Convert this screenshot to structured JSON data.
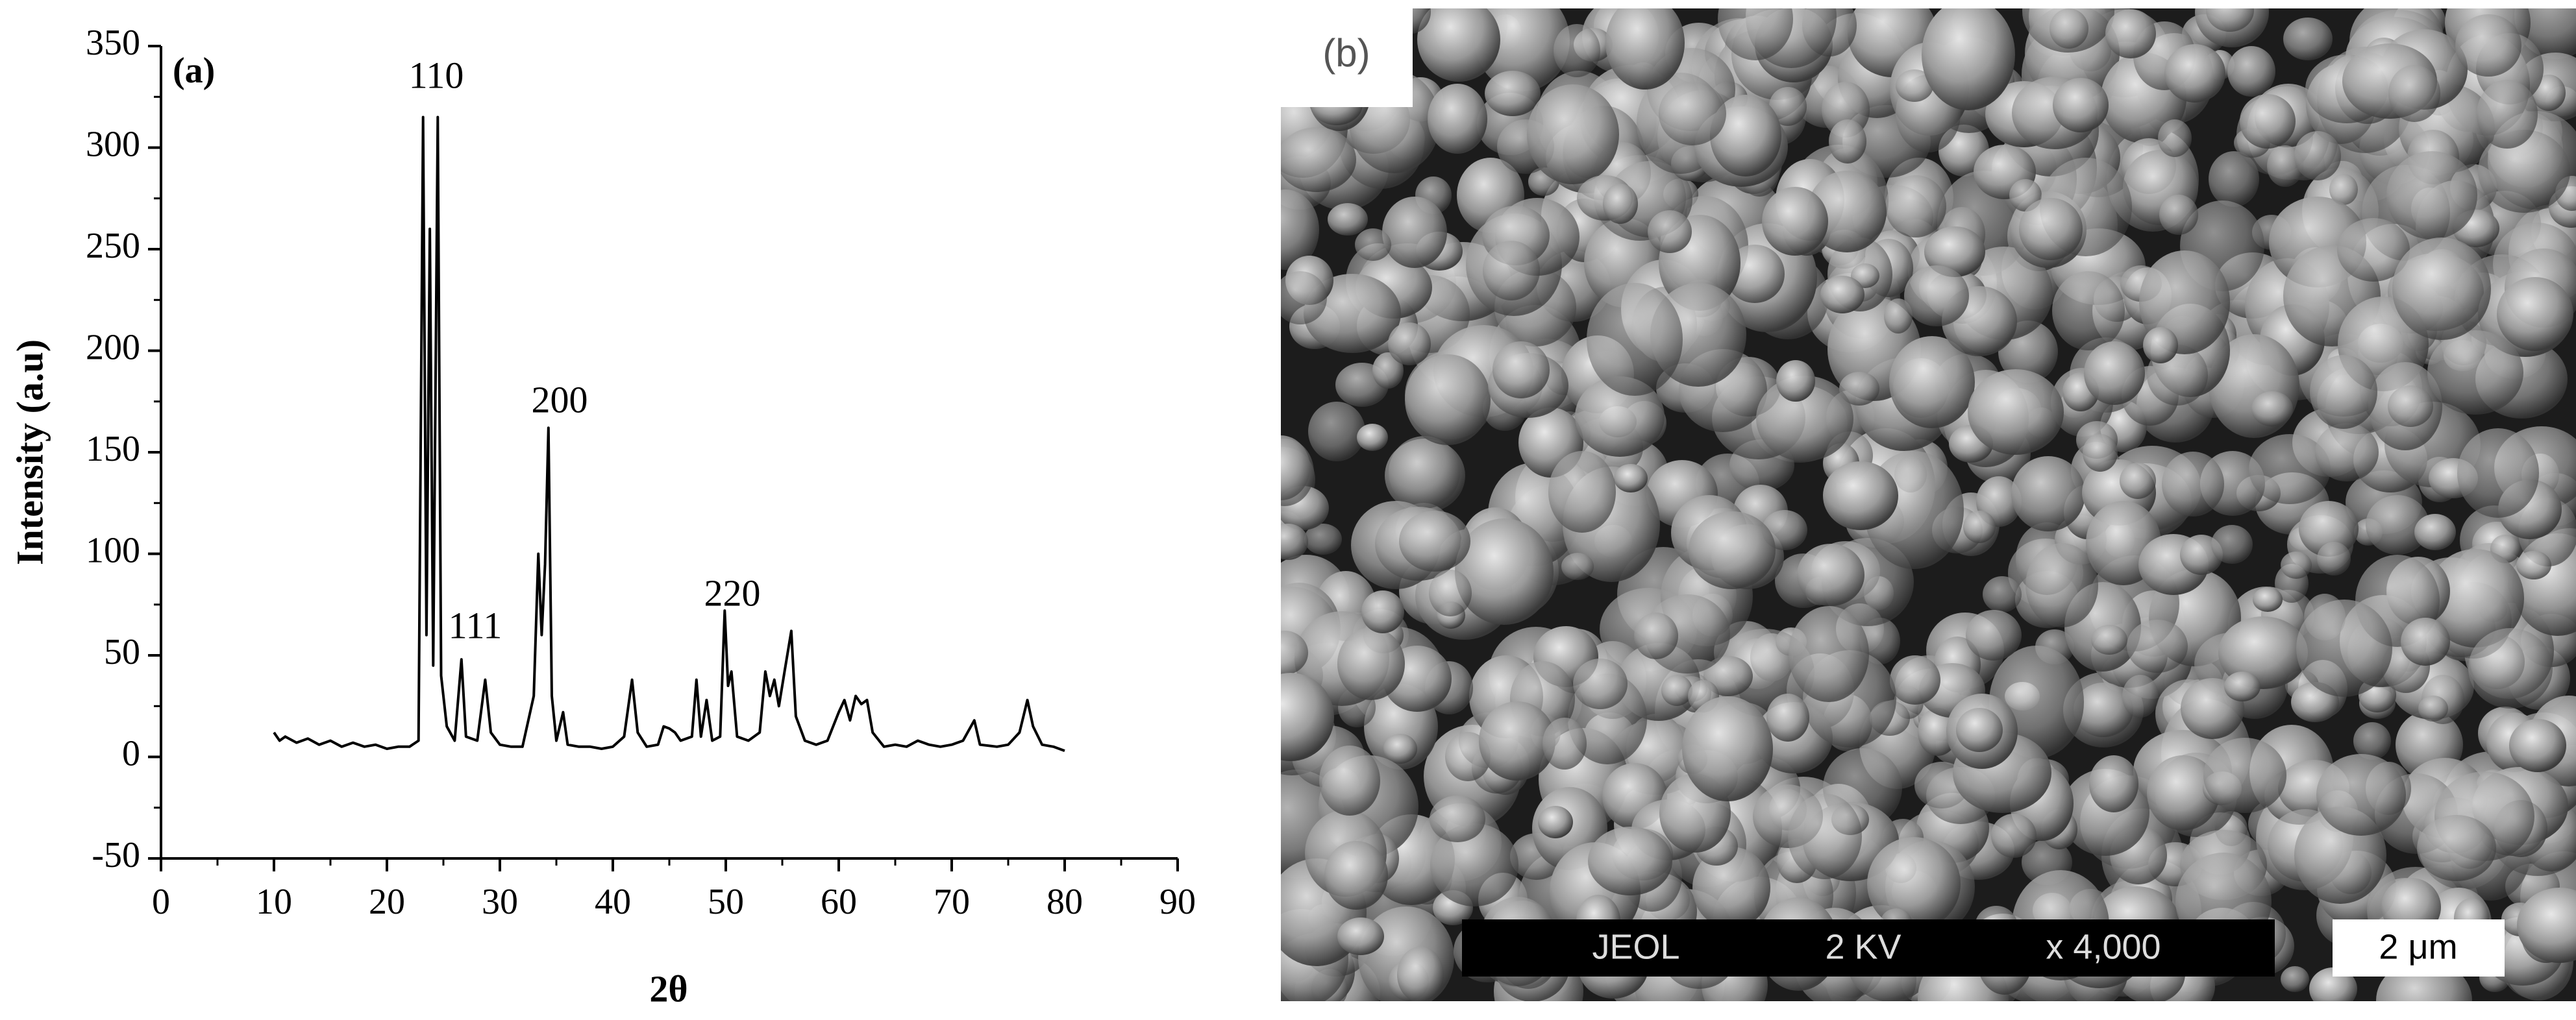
{
  "chart_data": {
    "type": "line",
    "title": "(a)",
    "xlabel": "2θ",
    "ylabel": "Intensity (a.u)",
    "x": [
      10,
      10.5,
      11,
      12,
      13,
      14,
      15,
      16,
      17,
      18,
      19,
      20,
      21,
      22,
      22.8,
      23.2,
      23.5,
      23.8,
      24.1,
      24.5,
      24.8,
      25.3,
      26,
      26.6,
      27,
      28,
      28.7,
      29.2,
      30,
      31,
      32,
      33,
      33.4,
      33.7,
      34,
      34.3,
      34.6,
      35,
      35.6,
      36,
      37,
      38,
      39,
      40,
      41,
      41.7,
      42.2,
      43,
      44,
      44.5,
      45,
      45.5,
      46,
      47,
      47.4,
      47.8,
      48.3,
      48.8,
      49.5,
      49.9,
      50.2,
      50.5,
      51,
      52,
      53,
      53.5,
      53.9,
      54.3,
      54.7,
      55.2,
      55.8,
      56.2,
      57,
      58,
      59,
      60,
      60.5,
      61,
      61.5,
      62,
      62.5,
      63,
      64,
      65,
      66,
      67,
      68,
      69,
      70,
      71,
      72,
      72.5,
      74,
      75,
      76,
      76.7,
      77.2,
      78,
      79,
      80
    ],
    "values": [
      12,
      8,
      10,
      7,
      9,
      6,
      8,
      5,
      7,
      5,
      6,
      4,
      5,
      5,
      8,
      315,
      60,
      260,
      45,
      315,
      40,
      15,
      8,
      48,
      10,
      8,
      38,
      12,
      6,
      5,
      5,
      30,
      100,
      60,
      95,
      162,
      30,
      8,
      22,
      6,
      5,
      5,
      4,
      5,
      10,
      38,
      12,
      5,
      6,
      15,
      14,
      12,
      8,
      10,
      38,
      10,
      28,
      8,
      10,
      72,
      35,
      42,
      10,
      8,
      12,
      42,
      30,
      38,
      25,
      42,
      62,
      20,
      8,
      6,
      8,
      22,
      28,
      18,
      30,
      26,
      28,
      12,
      5,
      6,
      5,
      8,
      6,
      5,
      6,
      8,
      18,
      6,
      5,
      6,
      12,
      28,
      15,
      6,
      5,
      3
    ],
    "color": "#000000",
    "xlim": [
      0,
      90
    ],
    "xticks": [
      0,
      10,
      20,
      30,
      40,
      50,
      60,
      70,
      80,
      90
    ],
    "ylim": [
      -50,
      350
    ],
    "yticks": [
      -50,
      0,
      50,
      100,
      150,
      200,
      250,
      300,
      350
    ],
    "grid": false,
    "annotations": [
      "110",
      "111",
      "200",
      "220"
    ]
  },
  "image_panel": {
    "label": "(b)",
    "instrument": "JEOL",
    "voltage": "2 KV",
    "magnification": "x 4,000",
    "scale": "2 μm"
  }
}
